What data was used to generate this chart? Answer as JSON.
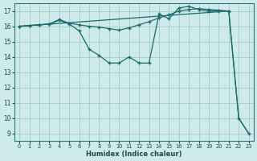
{
  "xlabel": "Humidex (Indice chaleur)",
  "bg_color": "#ceeaea",
  "grid_color": "#aacfcf",
  "line_color": "#1a6b6b",
  "xlim": [
    -0.5,
    23.5
  ],
  "ylim": [
    8.5,
    17.5
  ],
  "xticks": [
    0,
    1,
    2,
    3,
    4,
    5,
    6,
    7,
    8,
    9,
    10,
    11,
    12,
    13,
    14,
    15,
    16,
    17,
    18,
    19,
    20,
    21,
    22,
    23
  ],
  "yticks": [
    9,
    10,
    11,
    12,
    13,
    14,
    15,
    16,
    17
  ],
  "series": [
    {
      "x": [
        0,
        1,
        2,
        3,
        4,
        5,
        6,
        7,
        8,
        9,
        10,
        11,
        12,
        13,
        14,
        15,
        16,
        17,
        18,
        19,
        20,
        21
      ],
      "y": [
        16,
        16.05,
        16.1,
        16.15,
        16.4,
        16.15,
        15.7,
        14.5,
        14.1,
        13.6,
        13.6,
        14.0,
        13.6,
        13.6,
        16.8,
        16.5,
        17.2,
        17.3,
        17.1,
        17.0,
        17.0,
        17.0
      ],
      "marker": true
    },
    {
      "x": [
        0,
        1,
        2,
        3,
        4,
        5,
        6,
        7,
        8,
        9,
        10,
        11,
        12,
        13,
        14,
        15,
        16,
        17,
        18,
        19,
        20,
        21,
        22,
        23
      ],
      "y": [
        16,
        16.05,
        16.1,
        16.15,
        16.45,
        16.2,
        16.1,
        16.0,
        15.95,
        15.85,
        15.75,
        15.9,
        16.1,
        16.3,
        16.55,
        16.75,
        17.0,
        17.1,
        17.15,
        17.1,
        17.05,
        17.0,
        10.0,
        9.0
      ],
      "marker": true
    },
    {
      "x": [
        0,
        21,
        22,
        23
      ],
      "y": [
        16,
        17.0,
        10.0,
        9.0
      ],
      "marker": false
    }
  ]
}
